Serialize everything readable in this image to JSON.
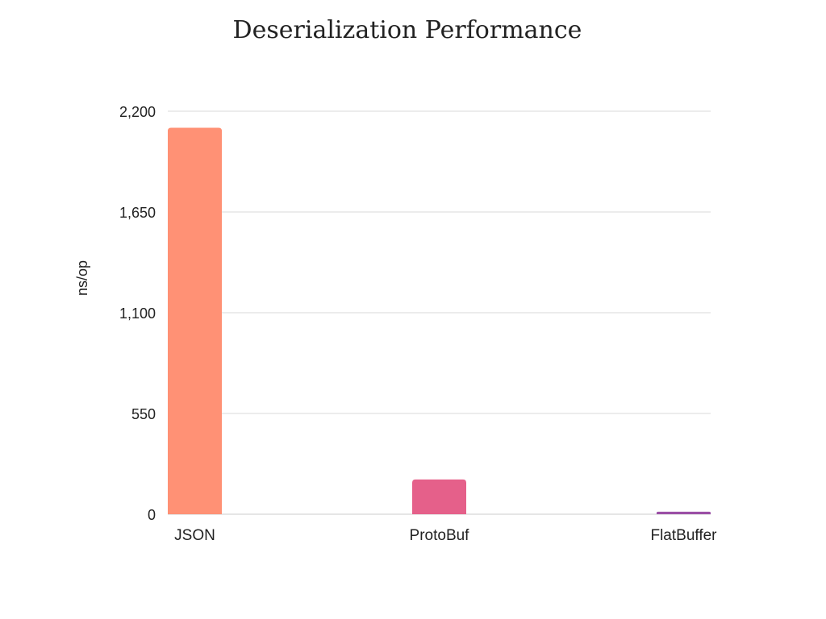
{
  "chart_data": {
    "type": "bar",
    "title": "Deserialization Performance",
    "xlabel": "",
    "ylabel": "ns/op",
    "categories": [
      "JSON",
      "ProtoBuf",
      "FlatBuffer"
    ],
    "values": [
      2110,
      190,
      14
    ],
    "colors": [
      "#FF9175",
      "#E5608A",
      "#9B4FA6"
    ],
    "ylim": [
      0,
      2200
    ],
    "yticks": [
      0,
      550,
      1100,
      1650,
      2200
    ],
    "ytick_labels": [
      "0",
      "550",
      "1,100",
      "1,650",
      "2,200"
    ],
    "grid": true,
    "legend": "none"
  }
}
